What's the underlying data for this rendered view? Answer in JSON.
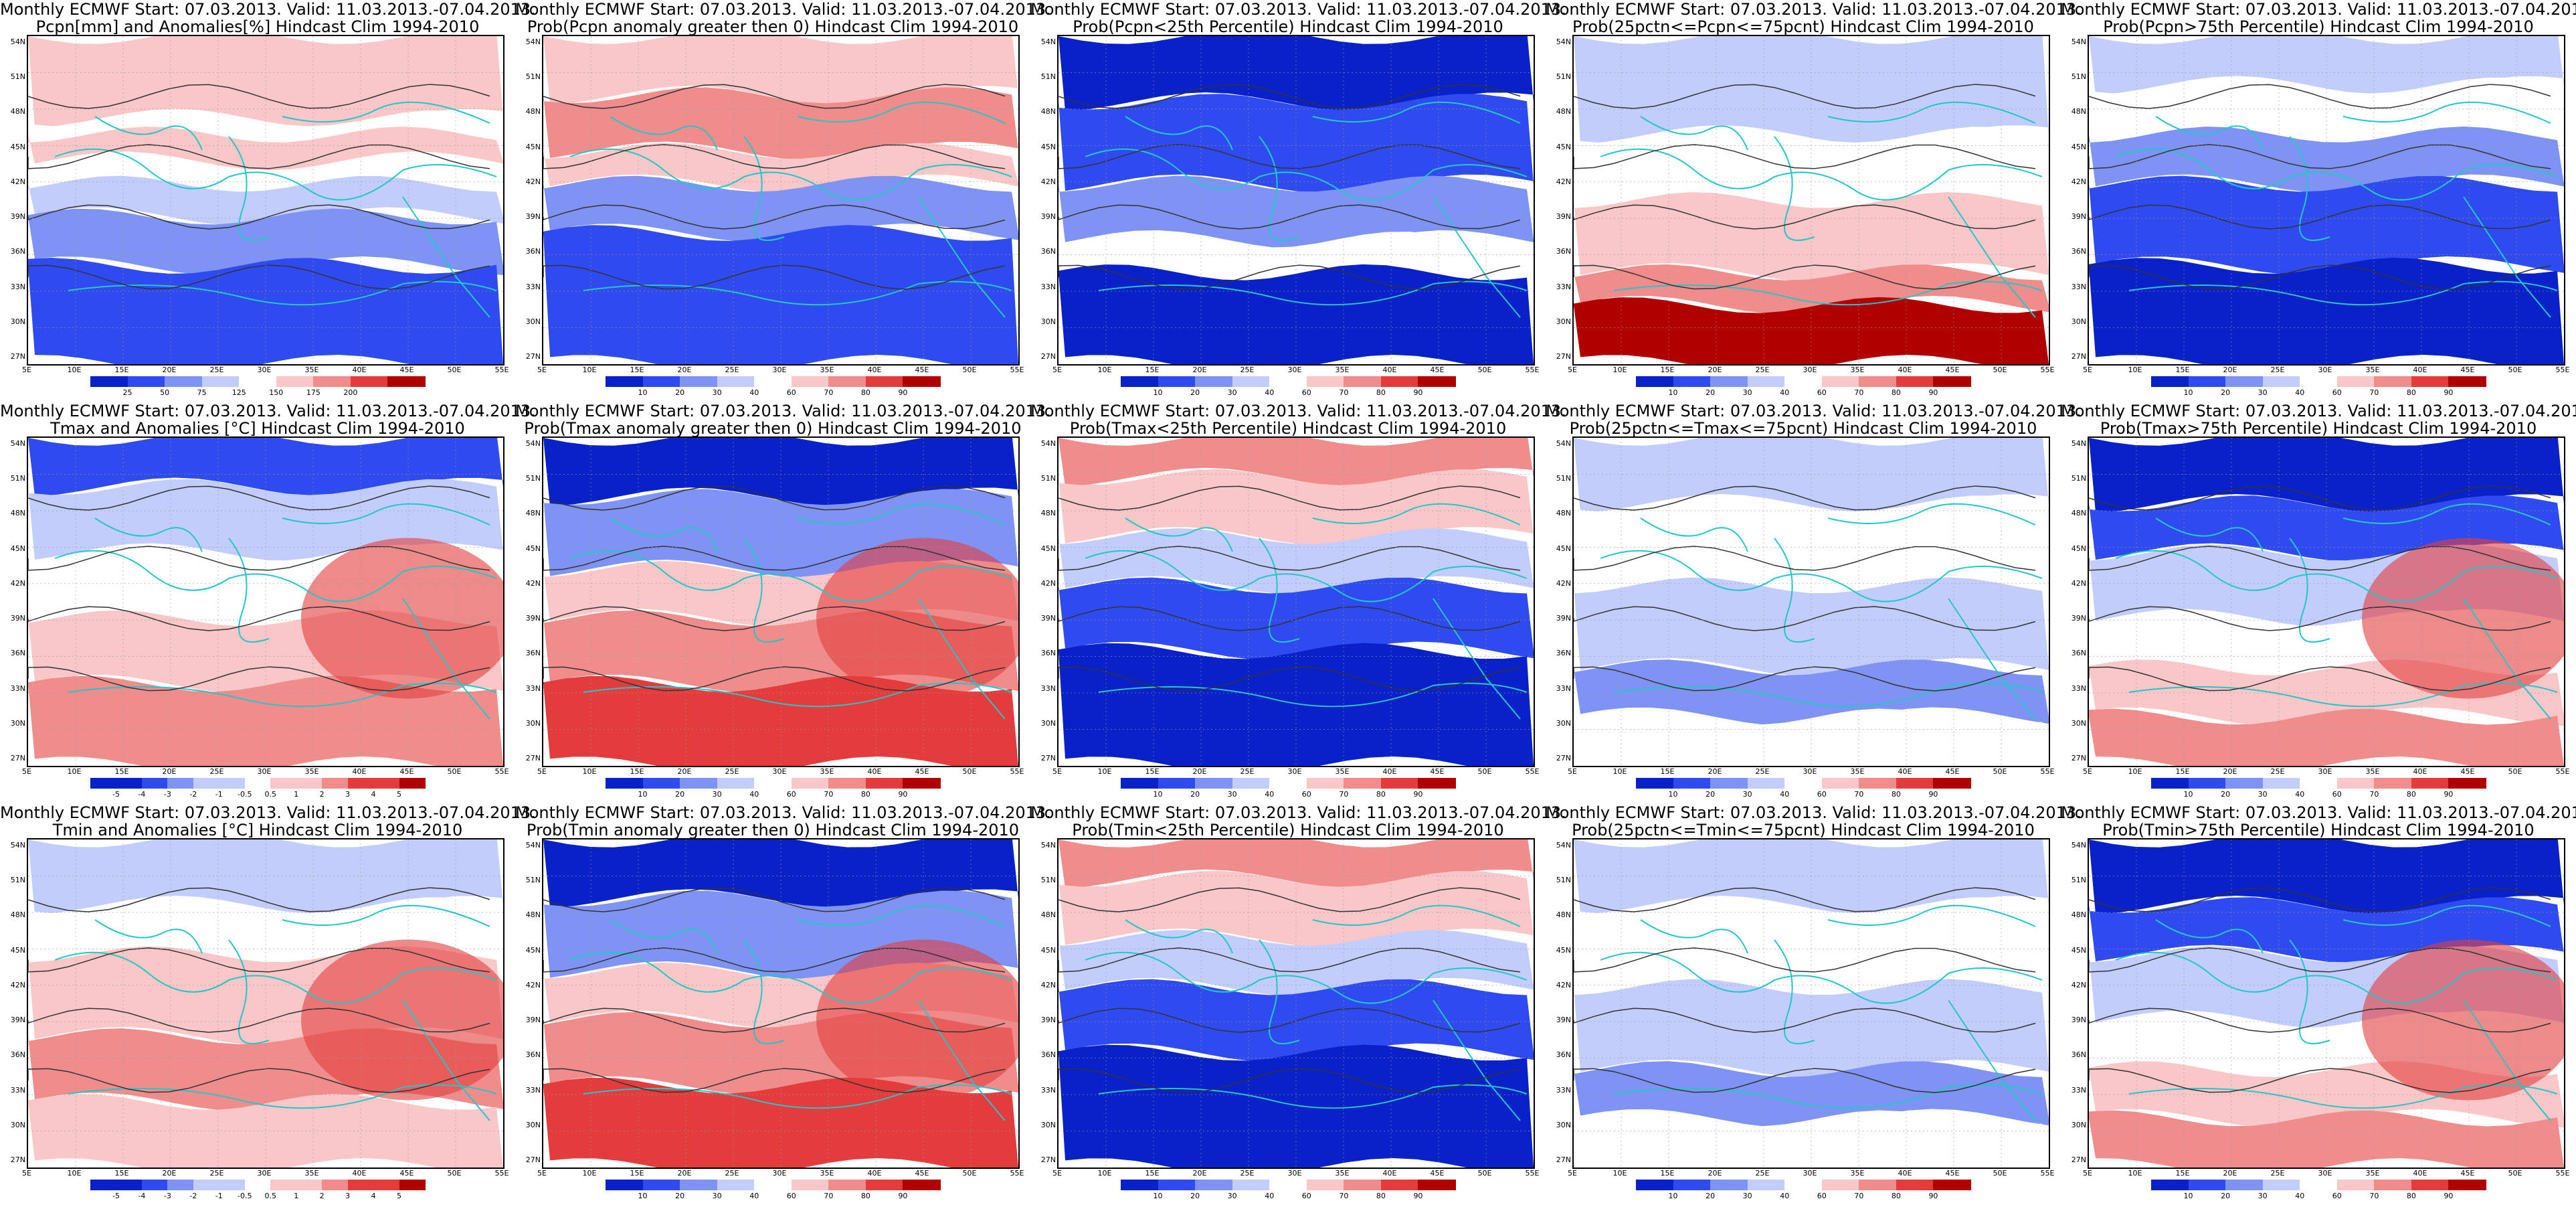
{
  "header": {
    "line1": "Monthly ECMWF Start: 07.03.2013. Valid: 11.03.2013.-07.04.2013."
  },
  "axes": {
    "lat_labels": [
      "54N",
      "51N",
      "48N",
      "45N",
      "42N",
      "39N",
      "36N",
      "33N",
      "30N",
      "27N"
    ],
    "lon_labels": [
      "5E",
      "10E",
      "15E",
      "20E",
      "25E",
      "30E",
      "35E",
      "40E",
      "45E",
      "50E",
      "55E"
    ]
  },
  "colors": {
    "deep_blue": "#0a20c8",
    "blue": "#2f4bf0",
    "mid_blue": "#7f93f5",
    "light_blue": "#c3cdfb",
    "white": "#ffffff",
    "light_red": "#f9c7c7",
    "mid_red": "#f18c8c",
    "red": "#e43c3c",
    "dark_red": "#b00000",
    "coast": "#22c7c7",
    "contour": "#333333"
  },
  "panels": [
    {
      "id": "pcpn-anom",
      "line2": "Pcpn[mm] and Anomalies[%] Hindcast Clim 1994-2010",
      "scheme": "pcpn-anom",
      "colorbar": [
        "25",
        "50",
        "75",
        "125",
        "150",
        "175",
        "200"
      ]
    },
    {
      "id": "pcpn-prob-pos",
      "line2": "Prob(Pcpn anomaly greater then 0) Hindcast Clim 1994-2010",
      "scheme": "prob-pos",
      "colorbar": [
        "10",
        "20",
        "30",
        "40",
        "60",
        "70",
        "80",
        "90"
      ]
    },
    {
      "id": "pcpn-prob-lt25",
      "line2": "Prob(Pcpn<25th Percentile) Hindcast Clim 1994-2010",
      "scheme": "prob-low",
      "colorbar": [
        "10",
        "20",
        "30",
        "40",
        "60",
        "70",
        "80",
        "90"
      ]
    },
    {
      "id": "pcpn-prob-mid",
      "line2": "Prob(25pctn<=Pcpn<=75pcnt) Hindcast Clim 1994-2010",
      "scheme": "prob-mid-south",
      "colorbar": [
        "10",
        "20",
        "30",
        "40",
        "60",
        "70",
        "80",
        "90"
      ]
    },
    {
      "id": "pcpn-prob-gt75",
      "line2": "Prob(Pcpn>75th Percentile) Hindcast Clim 1994-2010",
      "scheme": "prob-high-blue",
      "colorbar": [
        "10",
        "20",
        "30",
        "40",
        "60",
        "70",
        "80",
        "90"
      ]
    },
    {
      "id": "tmax-anom",
      "line2": "Tmax and Anomalies [°C] Hindcast Clim 1994-2010",
      "scheme": "temp-anom",
      "colorbar": [
        "-5",
        "-4",
        "-3",
        "-2",
        "-1",
        "-0.5",
        "0.5",
        "1",
        "2",
        "3",
        "4",
        "5"
      ]
    },
    {
      "id": "tmax-prob-pos",
      "line2": "Prob(Tmax anomaly greater then 0) Hindcast Clim 1994-2010",
      "scheme": "prob-pos-warm",
      "colorbar": [
        "10",
        "20",
        "30",
        "40",
        "60",
        "70",
        "80",
        "90"
      ]
    },
    {
      "id": "tmax-prob-lt25",
      "line2": "Prob(Tmax<25th Percentile) Hindcast Clim 1994-2010",
      "scheme": "prob-low-north",
      "colorbar": [
        "10",
        "20",
        "30",
        "40",
        "60",
        "70",
        "80",
        "90"
      ]
    },
    {
      "id": "tmax-prob-mid",
      "line2": "Prob(25pctn<=Tmax<=75pcnt) Hindcast Clim 1994-2010",
      "scheme": "prob-mid",
      "colorbar": [
        "10",
        "20",
        "30",
        "40",
        "60",
        "70",
        "80",
        "90"
      ]
    },
    {
      "id": "tmax-prob-gt75",
      "line2": "Prob(Tmax>75th Percentile) Hindcast Clim 1994-2010",
      "scheme": "prob-high-warm",
      "colorbar": [
        "10",
        "20",
        "30",
        "40",
        "60",
        "70",
        "80",
        "90"
      ]
    },
    {
      "id": "tmin-anom",
      "line2": "Tmin and Anomalies [°C] Hindcast Clim 1994-2010",
      "scheme": "temp-anom-2",
      "colorbar": [
        "-5",
        "-4",
        "-3",
        "-2",
        "-1",
        "-0.5",
        "0.5",
        "1",
        "2",
        "3",
        "4",
        "5"
      ]
    },
    {
      "id": "tmin-prob-pos",
      "line2": "Prob(Tmin anomaly greater then 0) Hindcast Clim 1994-2010",
      "scheme": "prob-pos-warm",
      "colorbar": [
        "10",
        "20",
        "30",
        "40",
        "60",
        "70",
        "80",
        "90"
      ]
    },
    {
      "id": "tmin-prob-lt25",
      "line2": "Prob(Tmin<25th Percentile) Hindcast Clim 1994-2010",
      "scheme": "prob-low-north",
      "colorbar": [
        "10",
        "20",
        "30",
        "40",
        "60",
        "70",
        "80",
        "90"
      ]
    },
    {
      "id": "tmin-prob-mid",
      "line2": "Prob(25pctn<=Tmin<=75pcnt) Hindcast Clim 1994-2010",
      "scheme": "prob-mid",
      "colorbar": [
        "10",
        "20",
        "30",
        "40",
        "60",
        "70",
        "80",
        "90"
      ]
    },
    {
      "id": "tmin-prob-gt75",
      "line2": "Prob(Tmin>75th Percentile) Hindcast Clim 1994-2010",
      "scheme": "prob-high-warm",
      "colorbar": [
        "10",
        "20",
        "30",
        "40",
        "60",
        "70",
        "80",
        "90"
      ]
    }
  ]
}
